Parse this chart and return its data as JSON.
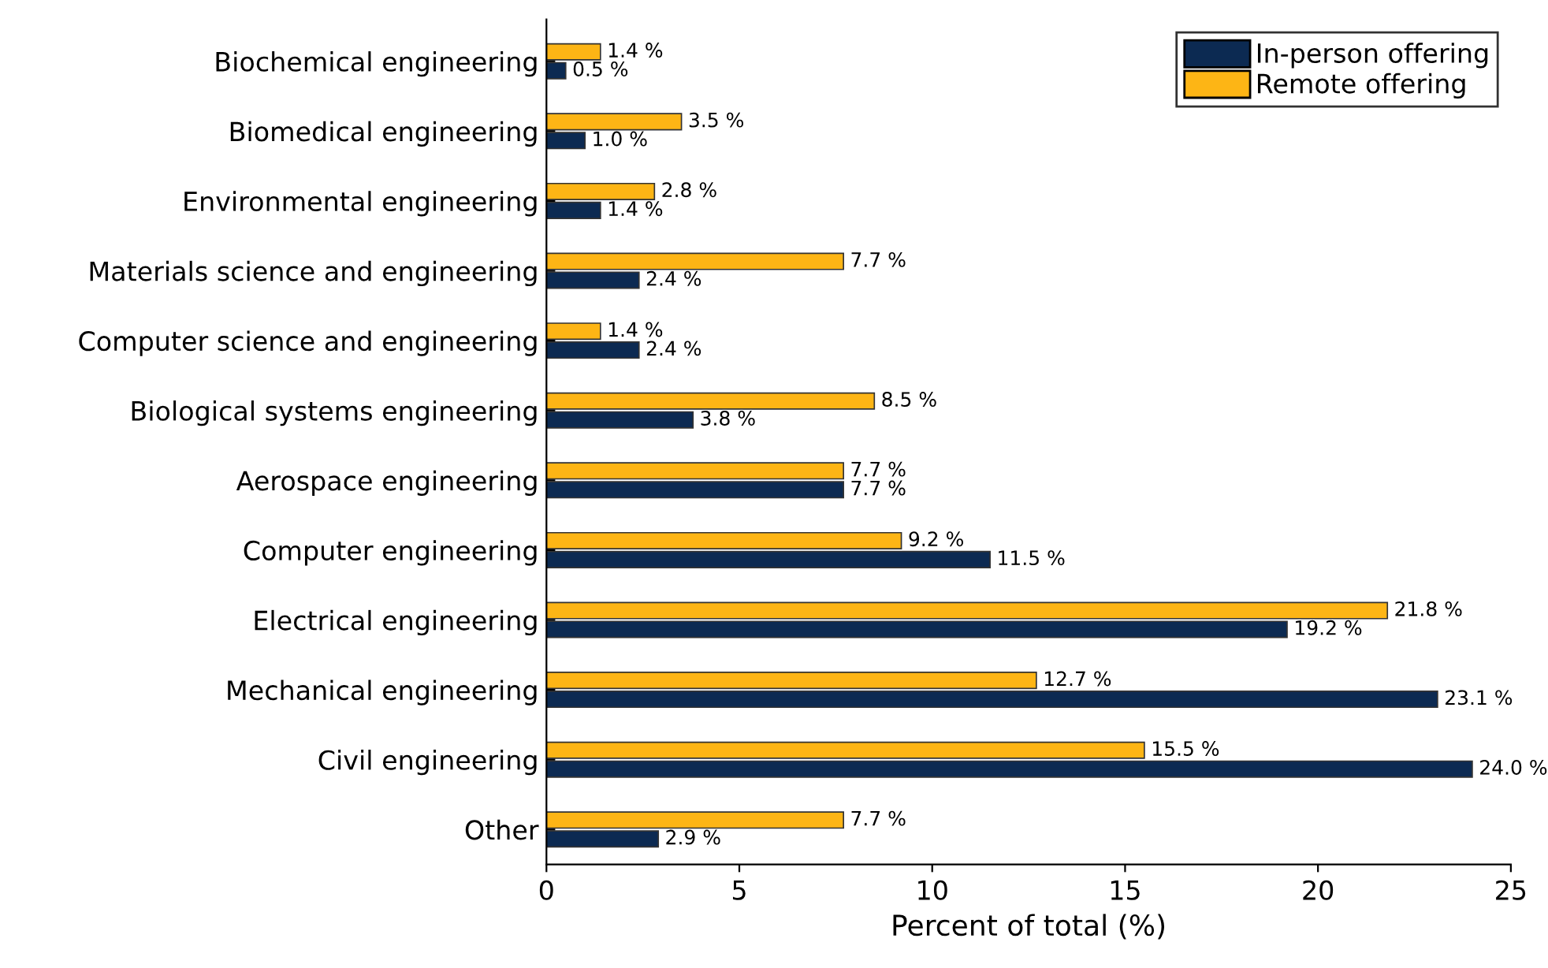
{
  "chart_data": {
    "type": "bar",
    "orientation": "horizontal",
    "xlabel": "Percent of total (%)",
    "categories": [
      "Biochemical engineering",
      "Biomedical engineering",
      "Environmental engineering",
      "Materials science and engineering",
      "Computer science and engineering",
      "Biological systems engineering",
      "Aerospace engineering",
      "Computer engineering",
      "Electrical engineering",
      "Mechanical engineering",
      "Civil engineering",
      "Other"
    ],
    "series": [
      {
        "name": "In-person offering",
        "color": "#0c2a52",
        "values": [
          0.5,
          1.0,
          1.4,
          2.4,
          2.4,
          3.8,
          7.7,
          11.5,
          19.2,
          23.1,
          24.0,
          2.9
        ],
        "value_labels": [
          "0.5 %",
          "1.0 %",
          "1.4 %",
          "2.4 %",
          "2.4 %",
          "3.8 %",
          "7.7 %",
          "11.5 %",
          "19.2 %",
          "23.1 %",
          "24.0 %",
          "2.9 %"
        ]
      },
      {
        "name": "Remote offering",
        "color": "#fdb515",
        "values": [
          1.4,
          3.5,
          2.8,
          7.7,
          1.4,
          8.5,
          7.7,
          9.2,
          21.8,
          12.7,
          15.5,
          7.7
        ],
        "value_labels": [
          "1.4 %",
          "3.5 %",
          "2.8 %",
          "7.7 %",
          "1.4 %",
          "8.5 %",
          "7.7 %",
          "9.2 %",
          "21.8 %",
          "12.7 %",
          "15.5 %",
          "7.7 %"
        ]
      }
    ],
    "xlim": [
      0,
      25
    ],
    "xticks": [
      0,
      5,
      10,
      15,
      20,
      25
    ],
    "grid": false,
    "legend": "top right"
  }
}
